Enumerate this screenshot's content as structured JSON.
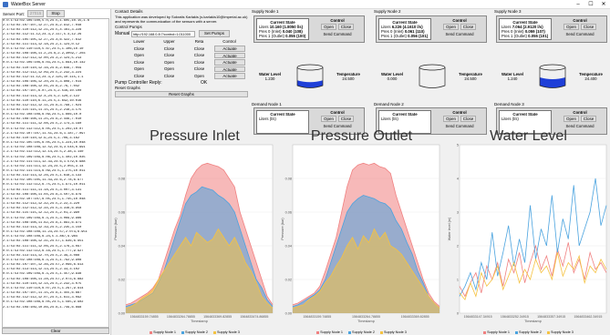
{
  "window": {
    "title": "WaterBox Server"
  },
  "left_panel": {
    "server_port_label": "Server Port:",
    "port_value": "27015",
    "stop_label": "Stop",
    "log_lines": [
      "0.0.1:53:02.106:100,5.0,24.5,1.605,10.15,1.6",
      "2.1:53:02.107:107,12.27,24.6,2.912,7.048",
      "2.1:53:02.110:112,12.21,24.5,4.161,3.228",
      "2.1:53:02.112:11.12,24.3,2.117,5.4,12.26",
      "2.1:53:02.105:105,12.27,24.4,6.422,7.612",
      "2.1:53:02.111:113,12.18,24.2,1.124,0.12",
      "0.0.1:53:02.110:110,5.67,24.5,1.106,10.10",
      "2.1:53:02.108:108,11.2,24.6,2.2,3059,7.203",
      "2.1:53:02.112:112,12.00,24.3,2.124,5.213",
      "0.0.1:53:02.106:106,6.03,24.5,1.694,10.142",
      "2.1:53:02.110:110,12.16,24.6,2.646,7.059",
      "2.1:53:02.112:112,12.09,24.5,2.232,3.224",
      "2.1:53:02.112:11.12,24.3,2.125,10.115,1.1",
      "2.1:53:02.106:106,12.20,24.5,3.808,7.014",
      "2.1:53:02.108:108,12.01,24.6,2.76,7.042",
      "2.1:53:02.107:107,6.07,24.5,2.516,10.100",
      "2.1:53:02.113:113,12.4,24.5,2.120,2.122",
      "2.1:53:02.110:110,6.11,24.5,1.642,10.016",
      "1.1:53:02.112:112,12.11,24.6,3.798,7.024",
      "1.1:53:02.115:115,11.15,24.5,2.218,3.175",
      "0.0.1:53:02.108:108,6.09,24.5,1.666,10.0",
      "2.1:53:02.108:108,11.25,24.6,2.446,7.010",
      "2.1:53:02.111:111,12.08,24.5,2.174,3.190",
      "0.0.1:53:02.112:112,6.05,24.5,1.202,10.07",
      "2.2.1:53:02.107:107,11.51,24.6,1.187,7.097",
      "2.1:53:02.110:110,12.9,24.5,1.706,3.162",
      "0.0.1:53:02.105:105,6.05,24.5,1.224,10.048",
      "1.2.1:53:02.108:108,12.52,24.6,3.544,6.991",
      "1.2.1:53:02.112:112,12.14,24.5,2.38,3.140",
      "0.0.1:53:02.109:109,6.06,24.5,1.402,10.035",
      "1.2.1:53:02.111:111,12.33,24.6,1.579,6.988",
      "1.2.1:53:02.111:111,12.24,24.5,2.055,3.14",
      "0.0.1:53:02.111:114,6.09,24.5,1.275,10.011",
      "1.1:53:02.113:113,12.26,24.5,1.618,3.133",
      "0.0.1:53:02.105:105,11.43,24.6,2.78,6.977",
      "0.0.1:53:02.112:112,6.75,24.5,1.971,10.011",
      "1.1:53:02.111:111,11.18,24.5,3.007,3.131",
      "2.1:53:02.108:108,11.04,24.6,3.507,6.979",
      "0.0.1:53:02.107:107,6.05,24.5,1.745,10.048",
      "1.1:53:02.112:112,12.32,24.5,2.22,3.220",
      "2.1:53:02.112:112,12.34,24.5,3.316,6.958",
      "1.1:53:02.115:115,12.12,24.5,2.01,2.990",
      "0.0.1:53:02.109:109,6.3,24.5,3.069,9.986",
      "2.1:53:02.108:108,11.62,24.6,1.891,6.971",
      "1.1:53:02.113:113,12.19,24.5,2.235,3.150",
      "0.0.1:53:02.108:108,11.23,24.57,2.073,6.951",
      "0.0.1:53:02.108:108,6.24,5.1.867,9.984",
      "2.1:53:02.108:108,12.31,24.57,1.936,6.951",
      "1.1:53:02.111:111,12.06,24.5,2.176,3.097",
      "0.0.1:53:02.112:112,6.16,24.5,1.777,9.927",
      "2.1:53:02.113:113,12.70,24.5,2.39,3.088",
      "0.0.1:53:02.108:108,6.3,24.5,1.792,9.908",
      "2.1:53:02.107:107,12.36,24.57,2.096,6.913",
      "1.1:53:02.113:113,12.13,24.5,2.33,3.102",
      "0.0.1:53:02.109:109,6.3,24.5,1.457,9.938",
      "2.1:53:02.108:108,11.28,24.57,2.073,6.882",
      "1.1:53:02.110:110,12.14,24.5,2.232,3.075",
      "0.0.1:53:02.110:110,6.07,24.5,1.297,9.914",
      "2.1:53:02.107:107,11.15,24.6,1.455,6.887",
      "1.1:53:02.112:112,12.07,24.5,1.611,3.092",
      "0.0.1:53:02.108:108,6.05,24.5,1.565,9.902",
      "2.1:53:02.109:109,10.86,24.6,1.749,6.898"
    ],
    "clear_label": "Clear"
  },
  "middle_panel": {
    "contact_label": "Contact Details",
    "description": "This application was developed by Sokratis Karlakis (s.karlakis10@imperial.ac.uk) and represents the communication of the sensors with a server.",
    "control_pumps_label": "Control Pumps",
    "manual_label": "Manual",
    "url_value": "http://192.168.0.8:7/control=1;011000",
    "set_pumps_label": "Set Pumps",
    "table_headers": [
      "Lower",
      "Upper",
      "Reta",
      "Control"
    ],
    "table_rows": [
      [
        "Close",
        "Close",
        "Close",
        "Actuate"
      ],
      [
        "Open",
        "Close",
        "Close",
        "Actuate"
      ],
      [
        "Close",
        "Open",
        "Close",
        "Actuate"
      ],
      [
        "Open",
        "Open",
        "Close",
        "Actuate"
      ],
      [
        "Close",
        "Close",
        "Open",
        "Actuate"
      ]
    ],
    "pump_reply_label": "Pump Controller Reply:",
    "pump_reply_value": "OK",
    "reset_graphs_label": "Reset Graphs",
    "reset_graphs_button": "Reset Graphs"
  },
  "supply_nodes": [
    {
      "title": "Supply Node 1",
      "current_state": "Current State",
      "liters_label": "Liters",
      "liters_value": "10.160 (1.8050 l/s)",
      "pres0_label": "Pres 0 (Inlet)",
      "pres0_value": "0.040 (108)",
      "pres1_label": "Pres 1 (Outlet)",
      "pres1_value": "0.055 (100)",
      "control": "Control",
      "open": "Open",
      "close": "Close",
      "send": "Send Command",
      "water_level_label": "Water Level",
      "water_level_value": "1.230",
      "water_fill": 0.35,
      "temperature_label": "Temperature",
      "temperature_value": "24.500"
    },
    {
      "title": "Supply Node 2",
      "current_state": "Current State",
      "liters_label": "Liters",
      "liters_value": "6.226 (4.1610 l/s)",
      "pres0_label": "Pres 0 (Inlet)",
      "pres0_value": "0.061 (110)",
      "pres1_label": "Pres 1 (Outlet)",
      "pres1_value": "0.056 (101)",
      "control": "Control",
      "open": "Open",
      "close": "Close",
      "send": "Send Command",
      "water_level_label": "Water Level",
      "water_level_value": "0.000",
      "water_fill": 0.0,
      "temperature_label": "Temperature",
      "temperature_value": "24.500"
    },
    {
      "title": "Supply Node 3",
      "current_state": "Current State",
      "liters_label": "Liters",
      "liters_value": "7.064 (2.9120 l/s)",
      "pres0_label": "Pres 0 (Inlet)",
      "pres0_value": "0.059 (107)",
      "pres1_label": "Pres 1 (Outlet)",
      "pres1_value": "0.055 (101)",
      "control": "Control",
      "open": "Open",
      "close": "Close",
      "send": "Send Command",
      "water_level_label": "Water Level",
      "water_level_value": "1.240",
      "water_fill": 0.5,
      "temperature_label": "Temperature",
      "temperature_value": "24.400"
    }
  ],
  "demand_nodes": [
    {
      "title": "Demand Node 1",
      "current_state": "Current State",
      "liters_label": "Liters (l/s)",
      "control": "Control",
      "open": "Open",
      "close": "Close",
      "send": "Send Command"
    },
    {
      "title": "Demand Node 2",
      "current_state": "Current State",
      "liters_label": "Liters (l/s)",
      "control": "Control",
      "open": "Open",
      "close": "Close",
      "send": "Send Command"
    },
    {
      "title": "Demand Node 3",
      "current_state": "Current State",
      "liters_label": "Liters (l/s)",
      "control": "Control",
      "open": "Open",
      "close": "Close",
      "send": "Send Command"
    }
  ],
  "colors": {
    "node1": "#f08080",
    "node2": "#4aa3df",
    "node3": "#f5c242",
    "water": "#1e3fd8"
  },
  "chart_data": [
    {
      "type": "line",
      "title": "Pressure Inlet",
      "ylabel": "Pressure (bar)",
      "xlabel": "Timestamp",
      "ylim": [
        0,
        0.1
      ],
      "yticks": [
        "0.00",
        "0.02",
        "0.04",
        "0.06",
        "0.08"
      ],
      "xticks": [
        "1564833159.74855",
        "1564833264.78855",
        "1564833369.82855",
        "1564833474.86855"
      ],
      "legend": [
        "Supply Node 1",
        "Supply Node 2",
        "Supply Node 3"
      ],
      "series": [
        {
          "name": "Supply Node 1",
          "values": [
            0.005,
            0.006,
            0.008,
            0.01,
            0.012,
            0.015,
            0.02,
            0.03,
            0.04,
            0.05,
            0.058,
            0.07,
            0.08,
            0.085,
            0.088,
            0.089,
            0.088,
            0.087,
            0.085,
            0.08,
            0.075,
            0.06,
            0.05,
            0.04,
            0.03,
            0.02,
            0.01,
            0.005
          ]
        },
        {
          "name": "Supply Node 2",
          "values": [
            0.004,
            0.005,
            0.006,
            0.008,
            0.01,
            0.012,
            0.018,
            0.025,
            0.035,
            0.045,
            0.055,
            0.065,
            0.07,
            0.072,
            0.075,
            0.074,
            0.073,
            0.07,
            0.068,
            0.065,
            0.06,
            0.05,
            0.04,
            0.03,
            0.02,
            0.015,
            0.008,
            0.004
          ]
        },
        {
          "name": "Supply Node 3",
          "values": [
            0.003,
            0.004,
            0.006,
            0.009,
            0.011,
            0.014,
            0.02,
            0.025,
            0.03,
            0.035,
            0.04,
            0.045,
            0.04,
            0.048,
            0.045,
            0.042,
            0.044,
            0.05,
            0.045,
            0.04,
            0.045,
            0.038,
            0.03,
            0.025,
            0.018,
            0.01,
            0.006,
            0.003
          ]
        }
      ]
    },
    {
      "type": "line",
      "title": "Pressure Outlet",
      "ylabel": "Pressure (bar)",
      "xlabel": "Timestamp",
      "ylim": [
        0,
        0.1
      ],
      "yticks": [
        "0.00",
        "0.02",
        "0.04",
        "0.06",
        "0.08"
      ],
      "xticks": [
        "1564833159.74855",
        "1564833264.78855",
        "1564833369.82855"
      ],
      "legend": [
        "Supply Node 1",
        "Supply Node 2",
        "Supply Node 3"
      ],
      "series": [
        {
          "name": "Supply Node 1",
          "values": [
            0.005,
            0.006,
            0.008,
            0.01,
            0.012,
            0.016,
            0.025,
            0.035,
            0.045,
            0.06,
            0.075,
            0.085,
            0.088,
            0.089,
            0.088,
            0.089,
            0.087,
            0.086,
            0.083,
            0.07,
            0.06,
            0.05,
            0.04,
            0.03,
            0.02,
            0.012,
            0.007,
            0.004
          ]
        },
        {
          "name": "Supply Node 2",
          "values": [
            0.004,
            0.005,
            0.007,
            0.009,
            0.011,
            0.014,
            0.02,
            0.03,
            0.04,
            0.05,
            0.06,
            0.065,
            0.068,
            0.07,
            0.069,
            0.068,
            0.066,
            0.065,
            0.062,
            0.055,
            0.05,
            0.042,
            0.035,
            0.025,
            0.018,
            0.01,
            0.006,
            0.003
          ]
        },
        {
          "name": "Supply Node 3",
          "values": [
            0.003,
            0.004,
            0.005,
            0.008,
            0.01,
            0.013,
            0.018,
            0.022,
            0.028,
            0.033,
            0.04,
            0.045,
            0.038,
            0.046,
            0.042,
            0.05,
            0.044,
            0.048,
            0.04,
            0.038,
            0.035,
            0.03,
            0.025,
            0.02,
            0.015,
            0.01,
            0.006,
            0.003
          ]
        }
      ]
    },
    {
      "type": "line",
      "title": "Water Level",
      "ylabel": "Water level (m)",
      "xlabel": "Timestamp",
      "ylim": [
        0,
        5
      ],
      "yticks": [
        "0",
        "1",
        "2",
        "3",
        "4",
        "5"
      ],
      "xticks": [
        "1564833147.34915",
        "1564833252.34915",
        "1564833357.34915",
        "1564833462.34915"
      ],
      "legend": [
        "Supply Node 1",
        "Supply Node 2",
        "Supply Node 3"
      ],
      "series": [
        {
          "name": "Supply Node 1",
          "values": [
            0.8,
            0.5,
            0.9,
            1.2,
            0.6,
            1.4,
            1.0,
            1.5,
            0.8,
            1.6,
            1.2,
            1.8,
            0.9,
            1.5,
            2.0,
            1.3,
            1.7,
            1.1,
            1.9,
            1.4,
            2.1,
            1.2,
            1.6,
            1.0,
            1.8,
            1.3,
            1.5,
            1.2
          ]
        },
        {
          "name": "Supply Node 2",
          "values": [
            0.5,
            0.8,
            1.2,
            0.7,
            1.5,
            1.0,
            2.4,
            1.1,
            1.8,
            2.6,
            1.4,
            2.2,
            1.5,
            3.2,
            1.6,
            2.5,
            2.0,
            3.5,
            1.8,
            2.8,
            2.2,
            3.8,
            2.0,
            2.5,
            3.0,
            4.0,
            2.6,
            3.2
          ]
        },
        {
          "name": "Supply Node 3",
          "values": [
            0.6,
            0.4,
            0.9,
            0.5,
            1.2,
            0.8,
            1.0,
            1.4,
            0.7,
            1.1,
            1.5,
            0.9,
            1.3,
            1.0,
            1.6,
            1.2,
            1.4,
            1.0,
            1.8,
            1.1,
            1.5,
            1.3,
            1.7,
            0.9,
            1.4,
            1.2,
            1.6,
            1.3
          ]
        }
      ]
    }
  ]
}
